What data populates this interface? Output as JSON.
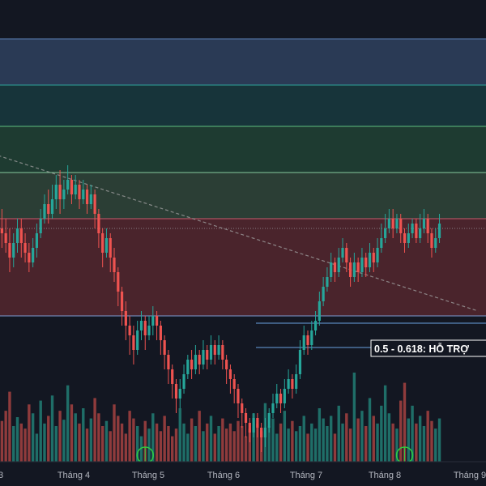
{
  "chart_data": {
    "type": "candlestick",
    "title": "",
    "xlabel": "",
    "ylabel": "",
    "x_ticks": [
      "3",
      "Tháng 4",
      "Tháng 5",
      "Tháng 6",
      "Tháng 7",
      "Tháng 8",
      "Tháng 9"
    ],
    "grid": false,
    "price_range": [
      0,
      100
    ],
    "zones": [
      {
        "from": 92.0,
        "to": 82.5,
        "fill": "#2a3a55",
        "line": "#5b7fb5"
      },
      {
        "from": 82.5,
        "to": 74.0,
        "fill": "#17343a",
        "line": "#2fa39a"
      },
      {
        "from": 74.0,
        "to": 64.5,
        "fill": "#1e3b31",
        "line": "#5fbf7f"
      },
      {
        "from": 64.5,
        "to": 55.0,
        "fill": "#2b3e35",
        "line": "#85c99d"
      },
      {
        "from": 55.0,
        "to": 35.0,
        "fill": "#4a242c",
        "line": "#c8596a"
      }
    ],
    "support_band": {
      "from": 33.5,
      "to": 28.5,
      "label": "0.5 - 0.618: HỖ TRỢ"
    },
    "trendline": {
      "from": [
        0,
        68
      ],
      "to": [
        123,
        36
      ]
    },
    "current_price": 53.0,
    "colors": {
      "up": "#26a69a",
      "down": "#ef5350",
      "vol_up": "#1f6e68",
      "vol_down": "#8f3b3c",
      "marker": "#2ecc40"
    },
    "volume_markers": [
      37,
      104
    ],
    "candles": [
      [
        53,
        52,
        57,
        49
      ],
      [
        52,
        50,
        55,
        48
      ],
      [
        50,
        47,
        53,
        44
      ],
      [
        47,
        50,
        52,
        45
      ],
      [
        50,
        53,
        55,
        48
      ],
      [
        53,
        50,
        55,
        47
      ],
      [
        50,
        48,
        52,
        46
      ],
      [
        48,
        46,
        50,
        44
      ],
      [
        46,
        49,
        51,
        45
      ],
      [
        49,
        52,
        54,
        47
      ],
      [
        52,
        55,
        57,
        51
      ],
      [
        55,
        58,
        60,
        54
      ],
      [
        58,
        56,
        61,
        54
      ],
      [
        56,
        59,
        62,
        55
      ],
      [
        59,
        62,
        64,
        57
      ],
      [
        62,
        59,
        65,
        56
      ],
      [
        59,
        61,
        63,
        57
      ],
      [
        61,
        63,
        66,
        60
      ],
      [
        63,
        60,
        64,
        58
      ],
      [
        60,
        62,
        64,
        59
      ],
      [
        62,
        59,
        63,
        57
      ],
      [
        59,
        61,
        63,
        58
      ],
      [
        61,
        58,
        62,
        56
      ],
      [
        58,
        60,
        62,
        57
      ],
      [
        60,
        56,
        61,
        53
      ],
      [
        56,
        52,
        57,
        49
      ],
      [
        52,
        48,
        53,
        45
      ],
      [
        48,
        51,
        53,
        47
      ],
      [
        51,
        47,
        52,
        44
      ],
      [
        47,
        44,
        49,
        42
      ],
      [
        44,
        40,
        45,
        37
      ],
      [
        40,
        36,
        41,
        33
      ],
      [
        36,
        33,
        38,
        30
      ],
      [
        33,
        31,
        35,
        27
      ],
      [
        31,
        28,
        33,
        25
      ],
      [
        28,
        32,
        34,
        27
      ],
      [
        32,
        34,
        36,
        30
      ],
      [
        34,
        31,
        35,
        28
      ],
      [
        31,
        33,
        35,
        30
      ],
      [
        33,
        35,
        37,
        31
      ],
      [
        35,
        33,
        36,
        30
      ],
      [
        33,
        30,
        34,
        27
      ],
      [
        30,
        27,
        31,
        24
      ],
      [
        27,
        24,
        28,
        21
      ],
      [
        24,
        21,
        25,
        18
      ],
      [
        21,
        18,
        22,
        15
      ],
      [
        18,
        20,
        22,
        16
      ],
      [
        20,
        23,
        25,
        19
      ],
      [
        23,
        26,
        27,
        22
      ],
      [
        26,
        24,
        28,
        22
      ],
      [
        24,
        27,
        29,
        23
      ],
      [
        27,
        25,
        28,
        23
      ],
      [
        25,
        28,
        30,
        24
      ],
      [
        28,
        26,
        29,
        24
      ],
      [
        26,
        29,
        31,
        25
      ],
      [
        29,
        27,
        30,
        25
      ],
      [
        27,
        29,
        31,
        26
      ],
      [
        29,
        26,
        30,
        24
      ],
      [
        26,
        24,
        27,
        21
      ],
      [
        24,
        22,
        25,
        19
      ],
      [
        22,
        20,
        23,
        17
      ],
      [
        20,
        17,
        21,
        14
      ],
      [
        17,
        15,
        18,
        12
      ],
      [
        15,
        13,
        16,
        10
      ],
      [
        13,
        11,
        14,
        9
      ],
      [
        11,
        14,
        15,
        10
      ],
      [
        14,
        12,
        15,
        10
      ],
      [
        12,
        10,
        13,
        7
      ],
      [
        10,
        12,
        14,
        8
      ],
      [
        12,
        15,
        16,
        11
      ],
      [
        15,
        17,
        19,
        14
      ],
      [
        17,
        19,
        21,
        16
      ],
      [
        19,
        17,
        20,
        15
      ],
      [
        17,
        20,
        22,
        16
      ],
      [
        20,
        22,
        24,
        19
      ],
      [
        22,
        20,
        23,
        18
      ],
      [
        20,
        23,
        25,
        19
      ],
      [
        23,
        28,
        30,
        22
      ],
      [
        28,
        31,
        33,
        27
      ],
      [
        31,
        29,
        32,
        27
      ],
      [
        29,
        32,
        34,
        28
      ],
      [
        32,
        34,
        36,
        31
      ],
      [
        34,
        38,
        40,
        33
      ],
      [
        38,
        41,
        43,
        37
      ],
      [
        41,
        43,
        45,
        40
      ],
      [
        43,
        46,
        48,
        42
      ],
      [
        46,
        44,
        47,
        42
      ],
      [
        44,
        47,
        49,
        43
      ],
      [
        47,
        49,
        51,
        46
      ],
      [
        49,
        46,
        50,
        44
      ],
      [
        46,
        43,
        47,
        41
      ],
      [
        43,
        46,
        48,
        42
      ],
      [
        46,
        44,
        47,
        42
      ],
      [
        44,
        47,
        49,
        43
      ],
      [
        47,
        45,
        48,
        43
      ],
      [
        45,
        48,
        50,
        44
      ],
      [
        48,
        46,
        49,
        44
      ],
      [
        46,
        49,
        51,
        45
      ],
      [
        49,
        51,
        54,
        48
      ],
      [
        51,
        53,
        56,
        50
      ],
      [
        53,
        55,
        57,
        52
      ],
      [
        55,
        53,
        57,
        51
      ],
      [
        53,
        55,
        56,
        52
      ],
      [
        55,
        52,
        56,
        50
      ],
      [
        52,
        50,
        53,
        48
      ],
      [
        50,
        52,
        54,
        49
      ],
      [
        52,
        54,
        55,
        51
      ],
      [
        54,
        51,
        55,
        50
      ],
      [
        51,
        53,
        56,
        50
      ],
      [
        53,
        55,
        57,
        52
      ],
      [
        55,
        52,
        56,
        50
      ],
      [
        52,
        49,
        53,
        47
      ],
      [
        49,
        51,
        53,
        48
      ],
      [
        51,
        54,
        56,
        50
      ]
    ],
    "volumes": [
      32,
      40,
      55,
      28,
      35,
      30,
      26,
      45,
      38,
      22,
      48,
      30,
      36,
      52,
      28,
      40,
      33,
      60,
      45,
      38,
      30,
      42,
      26,
      34,
      50,
      38,
      28,
      32,
      24,
      45,
      36,
      30,
      22,
      40,
      34,
      28,
      20,
      32,
      26,
      38,
      30,
      24,
      36,
      28,
      20,
      26,
      42,
      30,
      22,
      34,
      28,
      40,
      24,
      30,
      36,
      22,
      28,
      34,
      26,
      30,
      24,
      32,
      28,
      20,
      26,
      38,
      30,
      24,
      46,
      28,
      34,
      22,
      30,
      40,
      26,
      32,
      24,
      28,
      36,
      22,
      30,
      26,
      42,
      34,
      28,
      36,
      22,
      44,
      30,
      38,
      26,
      70,
      34,
      40,
      28,
      50,
      36,
      30,
      44,
      60,
      38,
      30,
      26,
      48,
      62,
      34,
      44,
      30,
      36,
      28,
      40,
      32,
      26,
      34
    ]
  }
}
